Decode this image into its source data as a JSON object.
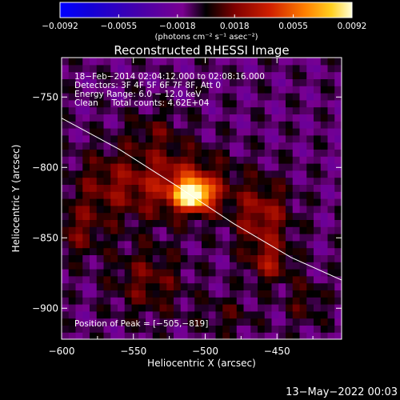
{
  "chart_data": {
    "type": "heatmap",
    "title": "Reconstructed RHESSI Image",
    "xlabel": "Heliocentric X (arcsec)",
    "ylabel": "Heliocentric Y (arcsec)",
    "xlim": [
      -600,
      -405
    ],
    "ylim": [
      -922,
      -722
    ],
    "xticks": [
      -600,
      -550,
      -500,
      -450
    ],
    "xtick_labels": [
      "−600",
      "−550",
      "−500",
      "−450"
    ],
    "yticks": [
      -750,
      -800,
      -850,
      -900
    ],
    "ytick_labels": [
      "−750",
      "−800",
      "−850",
      "−900"
    ],
    "colorbar": {
      "min": -0.0092,
      "max": 0.0092,
      "ticks": [
        -0.0092,
        -0.0055,
        -0.0018,
        0.0018,
        0.0055,
        0.0092
      ],
      "tick_labels": [
        "−0.0092",
        "−0.0055",
        "−0.0018",
        "0.0018",
        "0.0055",
        "0.0092"
      ],
      "unit_label": "(photons cm⁻² s⁻¹ asec⁻²)"
    },
    "annotations": {
      "time_range": "18−Feb−2014 02:04:12.000 to 02:08:16.000",
      "detectors": "Detectors: 3F 4F 5F 6F 7F 8F, Att 0",
      "energy": "Energy Range: 6.0 − 12.0 keV",
      "clean": "Clean     Total counts: 4.62E+04",
      "peak": "Position of Peak = [−505,−819]"
    },
    "peak": {
      "x": -505,
      "y": -819
    },
    "limb_line": [
      {
        "x": -600,
        "y": -765
      },
      {
        "x": -560,
        "y": -787
      },
      {
        "x": -520,
        "y": -813
      },
      {
        "x": -480,
        "y": -840
      },
      {
        "x": -440,
        "y": -864
      },
      {
        "x": -405,
        "y": -880
      }
    ],
    "sources": [
      {
        "x": -508,
        "y": -819,
        "sx": 9,
        "sy": 7,
        "amp": 0.0092
      },
      {
        "x": -515,
        "y": -812,
        "sx": 22,
        "sy": 16,
        "amp": 0.0042
      },
      {
        "x": -460,
        "y": -835,
        "sx": 14,
        "sy": 18,
        "amp": 0.0035
      },
      {
        "x": -455,
        "y": -868,
        "sx": 10,
        "sy": 10,
        "amp": 0.003
      },
      {
        "x": -565,
        "y": -812,
        "sx": 20,
        "sy": 18,
        "amp": 0.0026
      },
      {
        "x": -540,
        "y": -880,
        "sx": 18,
        "sy": 18,
        "amp": 0.0024
      },
      {
        "x": -590,
        "y": -845,
        "sx": 14,
        "sy": 14,
        "amp": 0.0022
      },
      {
        "x": -430,
        "y": -895,
        "sx": 10,
        "sy": 12,
        "amp": 0.0018
      },
      {
        "x": -535,
        "y": -775,
        "sx": 14,
        "sy": 12,
        "amp": 0.0017
      },
      {
        "x": -485,
        "y": -905,
        "sx": 14,
        "sy": 10,
        "amp": 0.0015
      }
    ],
    "grid": false
  },
  "footer": {
    "timestamp": "13−May−2022 00:03"
  }
}
